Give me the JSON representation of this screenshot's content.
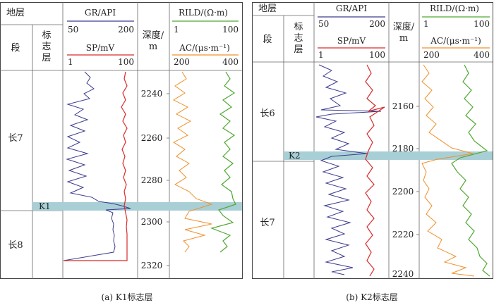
{
  "panels": [
    {
      "caption": "(a) K1标志层",
      "header": {
        "strata": "地层",
        "section": "段",
        "marker": "标\n志\n层",
        "gr": "GR/API",
        "gr_min": "50",
        "gr_max": "200",
        "sp": "SP/mV",
        "sp_min": "1",
        "sp_max": "100",
        "depth": "深度/\nm",
        "rild": "RILD/(Ω·m)",
        "rild_min": "1",
        "rild_max": "100",
        "ac": "AC/(μs·m⁻¹)",
        "ac_min": "200",
        "ac_max": "400"
      },
      "sections": [
        "长7",
        "长8"
      ],
      "marker_label": "K1",
      "depth_ticks": [
        "2240",
        "2260",
        "2280",
        "2300",
        "2320"
      ],
      "colors": {
        "gr": "#3b3b8f",
        "sp": "#d92b2b",
        "rild": "#4fa832",
        "ac": "#f0902a",
        "band": "#a9cfd6"
      }
    },
    {
      "caption": "(b) K2标志层",
      "header": {
        "strata": "地层",
        "section": "段",
        "marker": "标\n志\n层",
        "gr": "GR/API",
        "gr_min": "50",
        "gr_max": "200",
        "sp": "SP/mV",
        "sp_min": "1",
        "sp_max": "100",
        "depth": "深度/\nm",
        "rild": "RILD/(Ω·m)",
        "rild_min": "1",
        "rild_max": "100",
        "ac": "AC/(μs·m⁻¹)",
        "ac_min": "200",
        "ac_max": "400"
      },
      "sections": [
        "长6",
        "长7"
      ],
      "marker_label": "K2",
      "depth_ticks": [
        "2160",
        "2180",
        "2200",
        "2220",
        "2240"
      ],
      "colors": {
        "gr": "#3b3b8f",
        "sp": "#d92b2b",
        "rild": "#4fa832",
        "ac": "#f0902a",
        "band": "#a9cfd6"
      }
    }
  ]
}
